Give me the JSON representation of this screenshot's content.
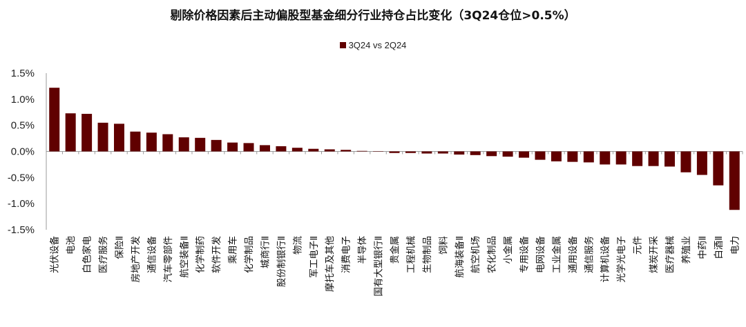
{
  "chart_data": {
    "type": "bar",
    "title": "剔除价格因素后主动偏股型基金细分行业持仓占比变化（3Q24仓位>0.5%）",
    "legend": [
      "3Q24 vs 2Q24"
    ],
    "legend_position": "top-center",
    "xlabel": "",
    "ylabel": "",
    "ylim": [
      -1.5,
      1.5
    ],
    "yticks": [
      "1.5%",
      "1.0%",
      "0.5%",
      "0.0%",
      "-0.5%",
      "-1.0%",
      "-1.5%"
    ],
    "ytick_values": [
      1.5,
      1.0,
      0.5,
      0.0,
      -0.5,
      -1.0,
      -1.5
    ],
    "unit": "%",
    "color": "#600000",
    "categories": [
      "光伏设备",
      "电池",
      "白色家电",
      "医疗服务",
      "保险Ⅱ",
      "房地产开发",
      "通信设备",
      "汽车零部件",
      "航空装备Ⅱ",
      "化学制药",
      "软件开发",
      "乘用车",
      "化学制品",
      "城商行Ⅱ",
      "股份制银行Ⅱ",
      "物流",
      "军工电子Ⅱ",
      "摩托车及其他",
      "消费电子",
      "半导体",
      "国有大型银行Ⅱ",
      "贵金属",
      "工程机械",
      "生物制品",
      "饲料",
      "航海装备Ⅱ",
      "航空机场",
      "农化制品",
      "小金属",
      "专用设备",
      "电网设备",
      "工业金属",
      "通用设备",
      "通信服务",
      "计算机设备",
      "光学光电子",
      "元件",
      "煤炭开采",
      "医疗器械",
      "养殖业",
      "中药Ⅱ",
      "白酒Ⅱ",
      "电力"
    ],
    "series": [
      {
        "name": "3Q24 vs 2Q24",
        "values": [
          1.22,
          0.73,
          0.72,
          0.55,
          0.53,
          0.38,
          0.36,
          0.33,
          0.27,
          0.26,
          0.22,
          0.17,
          0.16,
          0.12,
          0.1,
          0.07,
          0.05,
          0.04,
          0.03,
          0.01,
          0.0,
          -0.03,
          -0.03,
          -0.04,
          -0.04,
          -0.06,
          -0.07,
          -0.09,
          -0.1,
          -0.12,
          -0.16,
          -0.19,
          -0.2,
          -0.21,
          -0.25,
          -0.25,
          -0.28,
          -0.28,
          -0.29,
          -0.4,
          -0.45,
          -0.65,
          -1.12
        ]
      }
    ]
  }
}
